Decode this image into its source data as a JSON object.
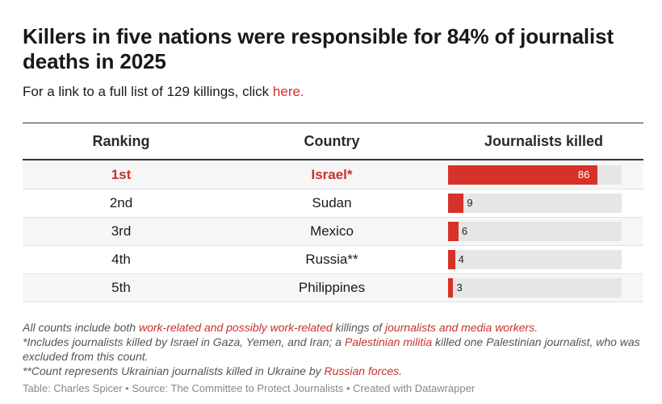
{
  "title": "Killers in five nations were responsible for 84% of journalist deaths in 2025",
  "subtitle": {
    "prefix": "For a link to a full list of 129 killings, click ",
    "link": "here."
  },
  "colors": {
    "accent": "#d63229",
    "text_highlight": "#c8312d",
    "bar_track": "#e6e6e6"
  },
  "chart_data": {
    "type": "table",
    "columns": [
      "Ranking",
      "Country",
      "Journalists killed"
    ],
    "rows": [
      {
        "rank": "1st",
        "country": "Israel*",
        "killed": 86,
        "highlight": true
      },
      {
        "rank": "2nd",
        "country": "Sudan",
        "killed": 9,
        "highlight": false
      },
      {
        "rank": "3rd",
        "country": "Mexico",
        "killed": 6,
        "highlight": false
      },
      {
        "rank": "4th",
        "country": "Russia**",
        "killed": 4,
        "highlight": false
      },
      {
        "rank": "5th",
        "country": "Philippines",
        "killed": 3,
        "highlight": false
      }
    ],
    "bar_max": 100
  },
  "notes": {
    "n1_a": "All counts include both ",
    "n1_link1": "work-related and possibly work-related",
    "n1_b": " killings of ",
    "n1_link2": "journalists and media workers",
    "n1_c": ".",
    "n2_a": "*Includes journalists killed by Israel in Gaza, Yemen, and Iran; a ",
    "n2_link": "Palestinian militia",
    "n2_b": " killed one Palestinian journalist, who was excluded from this count.",
    "n3_a": "**Count represents Ukrainian journalists killed in Ukraine by ",
    "n3_link": "Russian forces",
    "n3_b": "."
  },
  "source": "Table: Charles Spicer • Source: The Committee to Protect Journalists • Created with Datawrapper"
}
